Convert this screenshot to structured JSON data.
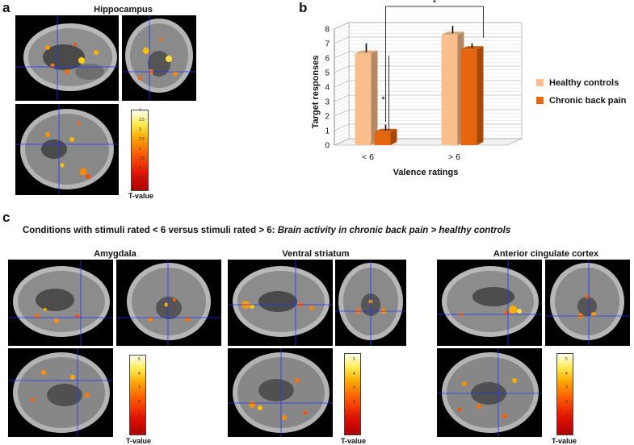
{
  "panel_a": {
    "letter": "a",
    "title": "Hippocampus",
    "colorbar": {
      "ticks": [
        "4",
        "3.5",
        "3",
        "2.5",
        "2",
        "1.5",
        "1",
        "0.5",
        "0"
      ],
      "label": "T-value"
    }
  },
  "panel_b": {
    "letter": "b",
    "significance": [
      "*",
      "*"
    ]
  },
  "panel_c": {
    "letter": "c",
    "condition_prefix": "Conditions with stimuli rated < 6 versus stimuli rated > 6: ",
    "condition_italic": "Brain activity in chronic back pain > healthy controls",
    "regions": [
      {
        "title": "Amygdala",
        "colorbar": {
          "ticks": [
            "5",
            "4",
            "3",
            "2",
            "1",
            "0"
          ],
          "label": "T-value"
        }
      },
      {
        "title": "Ventral striatum",
        "colorbar": {
          "ticks": [
            "5",
            "4",
            "3",
            "2",
            "1",
            "0"
          ],
          "label": "T-value"
        }
      },
      {
        "title": "Anterior cingulate cortex",
        "colorbar": {
          "ticks": [
            "5",
            "4",
            "3",
            "2",
            "1",
            "0"
          ],
          "label": "T-value"
        }
      }
    ]
  },
  "colors": {
    "healthy_controls": "#f9be8c",
    "chronic_back_pain": "#e5660f",
    "mri_background": "#000000",
    "crosshair": "#2233ff"
  },
  "chart_data": {
    "type": "bar",
    "categories": [
      "< 6",
      "> 6"
    ],
    "series": [
      {
        "name": "Healthy controls",
        "values": [
          6.3,
          7.6
        ],
        "errors": [
          0.6,
          0.5
        ]
      },
      {
        "name": "Chronic back pain",
        "values": [
          0.9,
          6.6
        ],
        "errors": [
          0.4,
          0.3
        ]
      }
    ],
    "xlabel": "Valence ratings",
    "ylabel": "Target responses",
    "ylim": [
      0,
      8
    ],
    "yticks": [
      "0",
      "1",
      "2",
      "3",
      "4",
      "5",
      "6",
      "7",
      "8"
    ],
    "grid": true,
    "legend_position": "right",
    "style": "3d"
  }
}
